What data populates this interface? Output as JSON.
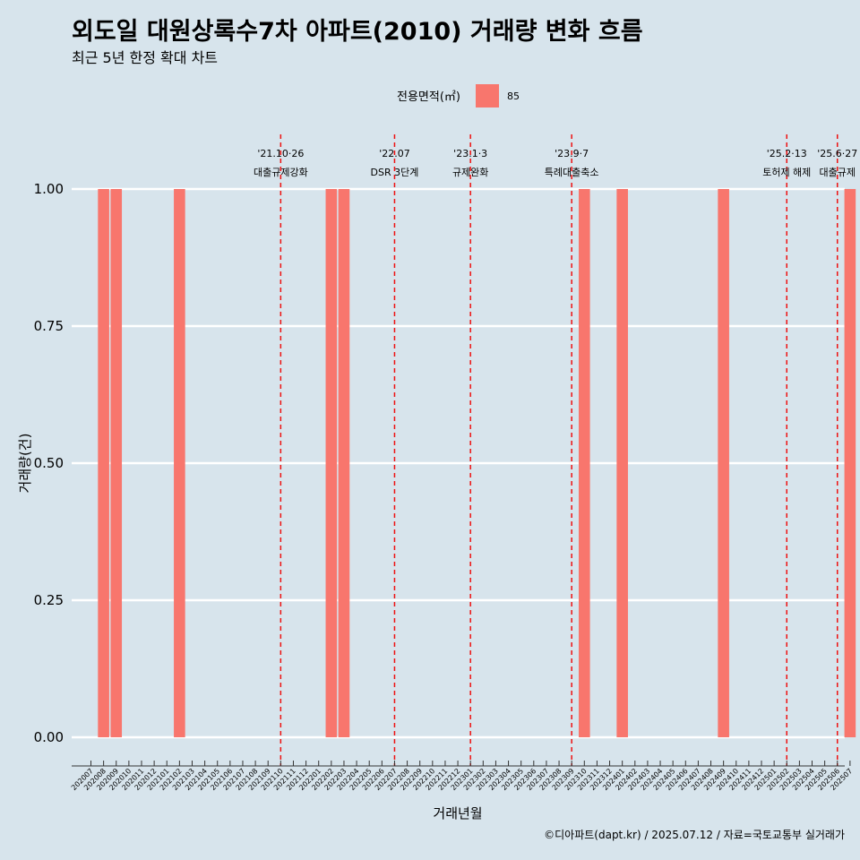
{
  "title": "외도일 대원상록수7차 아파트(2010) 거래량 변화 흐름",
  "subtitle": "최근 5년 한정 확대 차트",
  "caption": "©디아파트(dapt.kr) / 2025.07.12 / 자료=국토교통부 실거래가",
  "legend": {
    "title": "전용면적(㎡)",
    "label": "85",
    "color": "#f8766d"
  },
  "chart_data": {
    "type": "bar",
    "xlabel": "거래년월",
    "ylabel": "거래량(건)",
    "ylim": [
      0,
      1
    ],
    "y_ticks": [
      "0.00",
      "0.25",
      "0.50",
      "0.75",
      "1.00"
    ],
    "y_tick_values": [
      0,
      0.25,
      0.5,
      0.75,
      1.0
    ],
    "grid": true,
    "legend_position": "top",
    "categories": [
      "202007",
      "202008",
      "202009",
      "202010",
      "202011",
      "202012",
      "202101",
      "202102",
      "202103",
      "202104",
      "202105",
      "202106",
      "202107",
      "202108",
      "202109",
      "202110",
      "202111",
      "202112",
      "202201",
      "202202",
      "202203",
      "202204",
      "202205",
      "202206",
      "202207",
      "202208",
      "202209",
      "202210",
      "202211",
      "202212",
      "202301",
      "202302",
      "202303",
      "202304",
      "202305",
      "202306",
      "202307",
      "202308",
      "202309",
      "202310",
      "202311",
      "202312",
      "202401",
      "202402",
      "202403",
      "202404",
      "202405",
      "202406",
      "202407",
      "202408",
      "202409",
      "202410",
      "202411",
      "202412",
      "202501",
      "202502",
      "202503",
      "202504",
      "202505",
      "202506",
      "202507"
    ],
    "series": [
      {
        "name": "85",
        "color": "#f8766d",
        "values": [
          0,
          1,
          1,
          0,
          0,
          0,
          0,
          1,
          0,
          0,
          0,
          0,
          0,
          0,
          0,
          0,
          0,
          0,
          0,
          1,
          1,
          0,
          0,
          0,
          0,
          0,
          0,
          0,
          0,
          0,
          0,
          0,
          0,
          0,
          0,
          0,
          0,
          0,
          0,
          1,
          0,
          0,
          1,
          0,
          0,
          0,
          0,
          0,
          0,
          0,
          1,
          0,
          0,
          0,
          0,
          0,
          0,
          0,
          0,
          0,
          1
        ]
      }
    ],
    "annotations": [
      {
        "date_label": "'21.10·26",
        "text": "대출규제강화",
        "at": "202110"
      },
      {
        "date_label": "'22.07",
        "text": "DSR 3단계",
        "at": "202207"
      },
      {
        "date_label": "'23.1·3",
        "text": "규제완화",
        "at": "202301"
      },
      {
        "date_label": "'23.9·7",
        "text": "특례대출축소",
        "at": "202309"
      },
      {
        "date_label": "'25.2·13",
        "text": "토허제 해제",
        "at": "202502"
      },
      {
        "date_label": "'25.6·27",
        "text": "대출규제",
        "at": "202506"
      }
    ]
  }
}
